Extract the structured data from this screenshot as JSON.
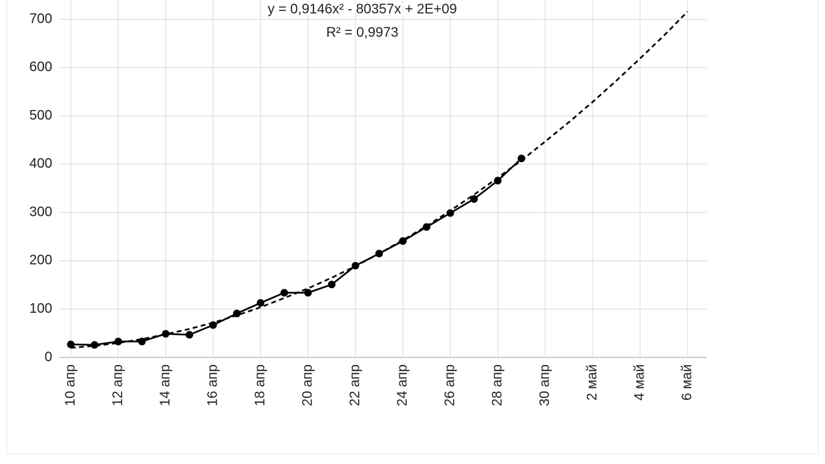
{
  "chart_data": {
    "type": "line",
    "annotations": [
      "y = 0,9146x² - 80357x + 2E+09",
      "R² = 0,9973"
    ],
    "categories": [
      "10 апр",
      null,
      "12 апр",
      null,
      "14 апр",
      null,
      "16 апр",
      null,
      "18 апр",
      null,
      "20 апр",
      null,
      "22 апр",
      null,
      "24 апр",
      null,
      "26 апр",
      null,
      "28 апр",
      null,
      "30 апр",
      null,
      "2 май",
      null,
      "4 май",
      null,
      "6 май"
    ],
    "series": [
      {
        "color": "#000000",
        "dash": false,
        "markers": true,
        "values": [
          27,
          26,
          33,
          33,
          49,
          47,
          67,
          91,
          113,
          134,
          134,
          151,
          190,
          215,
          241,
          270,
          299,
          328,
          366,
          412,
          null,
          null,
          null,
          null,
          null,
          null,
          null
        ]
      },
      {
        "color": "#000000",
        "dash": true,
        "markers": false,
        "values": [
          20,
          24,
          30,
          38,
          48,
          59,
          72,
          87,
          104,
          123,
          143,
          165,
          189,
          215,
          243,
          272,
          304,
          337,
          372,
          408,
          447,
          487,
          529,
          573,
          619,
          666,
          716
        ]
      }
    ],
    "ylim": [
      0,
      740
    ],
    "yticks": [
      0,
      100,
      200,
      300,
      400,
      500,
      600,
      700
    ],
    "grid": true
  }
}
